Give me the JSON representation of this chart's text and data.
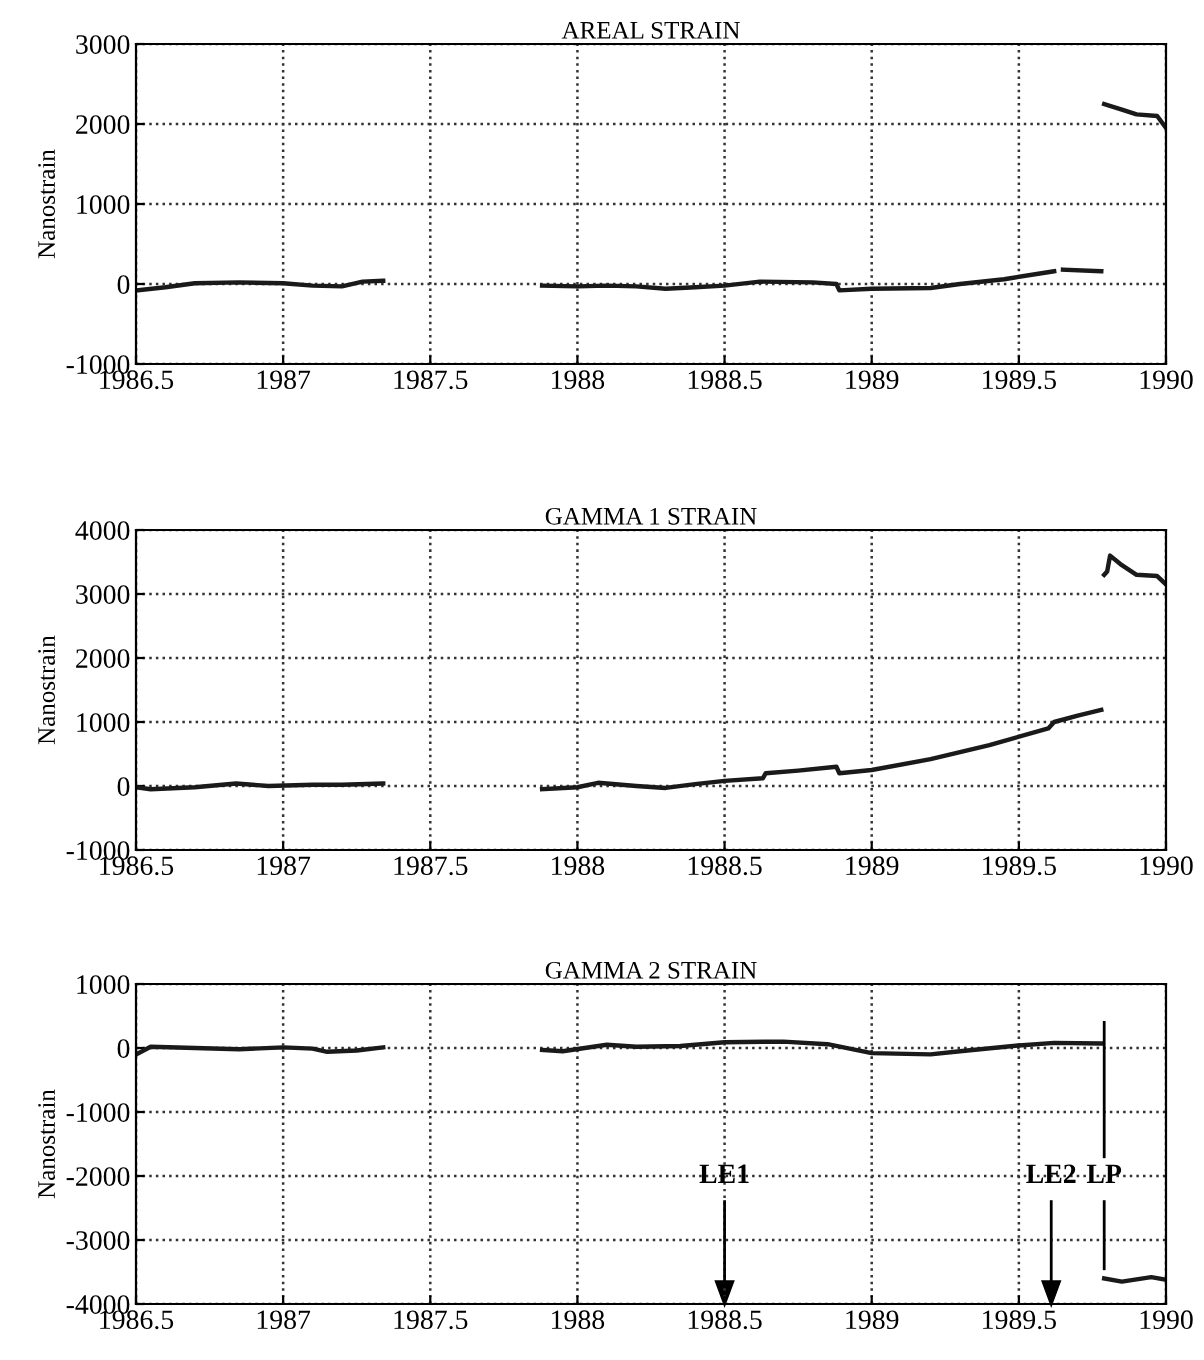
{
  "chart_data": [
    {
      "type": "line",
      "title": "AREAL STRAIN",
      "ylabel": "Nanostrain",
      "xlim": [
        1986.5,
        1990
      ],
      "ylim": [
        -1000,
        3000
      ],
      "xticks": [
        1986.5,
        1987,
        1987.5,
        1988,
        1988.5,
        1989,
        1989.5,
        1990
      ],
      "yticks": [
        -1000,
        0,
        1000,
        2000,
        3000
      ],
      "grid": true,
      "legend": false,
      "x": [
        1986.5,
        1986.6,
        1986.7,
        1986.85,
        1987.0,
        1987.1,
        1987.2,
        1987.27,
        1987.34,
        1987.6,
        1987.88,
        1988.0,
        1988.1,
        1988.2,
        1988.3,
        1988.4,
        1988.5,
        1988.62,
        1988.8,
        1988.88,
        1988.89,
        1989.0,
        1989.2,
        1989.3,
        1989.45,
        1989.62,
        1989.635,
        1989.65,
        1989.78,
        1989.785,
        1989.79,
        1989.85,
        1989.9,
        1989.97,
        1990
      ],
      "series": [
        {
          "color": "#1a1a1a",
          "values": [
            -80,
            -40,
            10,
            20,
            10,
            -20,
            -30,
            30,
            40,
            null,
            -20,
            -30,
            -20,
            -30,
            -60,
            -40,
            -20,
            30,
            20,
            0,
            -80,
            -60,
            -50,
            0,
            60,
            160,
            null,
            180,
            160,
            null,
            2250,
            2180,
            2120,
            2100,
            1950
          ]
        }
      ]
    },
    {
      "type": "line",
      "title": "GAMMA 1 STRAIN",
      "ylabel": "Nanostrain",
      "xlim": [
        1986.5,
        1990
      ],
      "ylim": [
        -1000,
        4000
      ],
      "xticks": [
        1986.5,
        1987,
        1987.5,
        1988,
        1988.5,
        1989,
        1989.5,
        1990
      ],
      "yticks": [
        -1000,
        0,
        1000,
        2000,
        3000,
        4000
      ],
      "grid": true,
      "legend": false,
      "x": [
        1986.5,
        1986.55,
        1986.7,
        1986.84,
        1986.95,
        1987.1,
        1987.2,
        1987.34,
        1987.6,
        1987.88,
        1988.0,
        1988.07,
        1988.2,
        1988.3,
        1988.4,
        1988.5,
        1988.63,
        1988.64,
        1988.75,
        1988.88,
        1988.89,
        1989.0,
        1989.2,
        1989.4,
        1989.6,
        1989.62,
        1989.7,
        1989.78,
        1989.785,
        1989.79,
        1989.8,
        1989.81,
        1989.85,
        1989.9,
        1989.97,
        1990
      ],
      "series": [
        {
          "color": "#1a1a1a",
          "values": [
            -20,
            -50,
            -20,
            40,
            0,
            20,
            20,
            40,
            null,
            -50,
            -20,
            50,
            0,
            -30,
            30,
            80,
            120,
            200,
            240,
            300,
            200,
            250,
            420,
            640,
            900,
            1000,
            1100,
            1190,
            null,
            3300,
            3350,
            3600,
            3450,
            3300,
            3280,
            3150
          ]
        }
      ]
    },
    {
      "type": "line",
      "title": "GAMMA 2 STRAIN",
      "ylabel": "Nanostrain",
      "xlim": [
        1986.5,
        1990
      ],
      "ylim": [
        -4000,
        1000
      ],
      "xticks": [
        1986.5,
        1987,
        1987.5,
        1988,
        1988.5,
        1989,
        1989.5,
        1990
      ],
      "yticks": [
        -4000,
        -3000,
        -2000,
        -1000,
        0,
        1000
      ],
      "grid": true,
      "legend": false,
      "x": [
        1986.5,
        1986.55,
        1986.7,
        1986.85,
        1987.0,
        1987.1,
        1987.15,
        1987.25,
        1987.34,
        1987.6,
        1987.88,
        1987.95,
        1988.1,
        1988.2,
        1988.35,
        1988.5,
        1988.7,
        1988.85,
        1989.0,
        1989.2,
        1989.3,
        1989.5,
        1989.62,
        1989.78,
        1989.785,
        1989.79,
        1989.85,
        1989.95,
        1990
      ],
      "series": [
        {
          "color": "#1a1a1a",
          "values": [
            -100,
            20,
            0,
            -20,
            10,
            -10,
            -60,
            -40,
            10,
            null,
            -30,
            -50,
            50,
            20,
            30,
            90,
            100,
            60,
            -80,
            -100,
            -50,
            40,
            80,
            70,
            null,
            -3600,
            -3650,
            -3580,
            -3620
          ]
        }
      ],
      "ref_lines": [
        {
          "axis": "x",
          "value": 1988.5,
          "label": "LE1"
        },
        {
          "axis": "x",
          "value": 1989.61,
          "label": "LE2"
        },
        {
          "axis": "x",
          "value": 1989.79,
          "label": "LP"
        }
      ]
    }
  ]
}
